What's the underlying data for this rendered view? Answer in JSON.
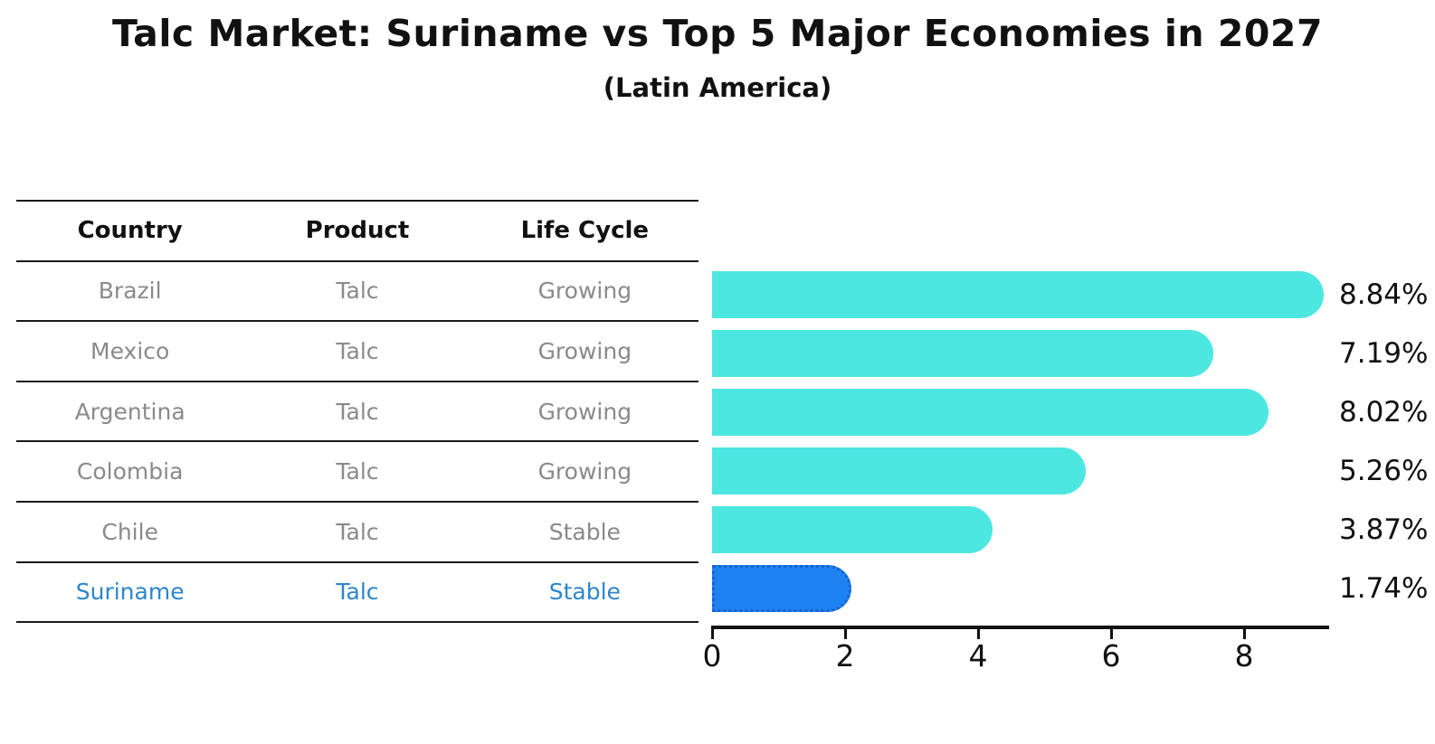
{
  "title": "Talc Market: Suriname vs Top 5 Major Economies in 2027",
  "subtitle": "(Latin America)",
  "table": {
    "headers": [
      "Country",
      "Product",
      "Life Cycle"
    ],
    "rows": [
      {
        "country": "Brazil",
        "product": "Talc",
        "life_cycle": "Growing",
        "highlight": false
      },
      {
        "country": "Mexico",
        "product": "Talc",
        "life_cycle": "Growing",
        "highlight": false
      },
      {
        "country": "Argentina",
        "product": "Talc",
        "life_cycle": "Growing",
        "highlight": false
      },
      {
        "country": "Colombia",
        "product": "Talc",
        "life_cycle": "Growing",
        "highlight": false
      },
      {
        "country": "Chile",
        "product": "Talc",
        "life_cycle": "Stable",
        "highlight": false
      },
      {
        "country": "Suriname",
        "product": "Talc",
        "life_cycle": "Stable",
        "highlight": true
      }
    ]
  },
  "chart_data": {
    "type": "bar",
    "orientation": "horizontal",
    "title": "Talc Market: Suriname vs Top 5 Major Economies in 2027 (Latin America)",
    "categories": [
      "Brazil",
      "Mexico",
      "Argentina",
      "Colombia",
      "Chile",
      "Suriname"
    ],
    "values": [
      8.84,
      7.19,
      8.02,
      5.26,
      3.87,
      1.74
    ],
    "value_labels": [
      "8.84%",
      "7.19%",
      "8.02%",
      "5.26%",
      "3.87%",
      "1.74%"
    ],
    "unit": "%",
    "x_ticks": [
      0,
      2,
      4,
      6,
      8
    ],
    "xlim": [
      0,
      9.25
    ],
    "grid": false,
    "legend": false,
    "highlight_index": 5
  },
  "colors": {
    "bar": "#4DE7E1",
    "highlight_bar": "#1E82F0",
    "highlight_border": "#1563CF",
    "highlight_text": "#2E86C9",
    "table_text": "#8A8A8A",
    "axis": "#111111"
  }
}
